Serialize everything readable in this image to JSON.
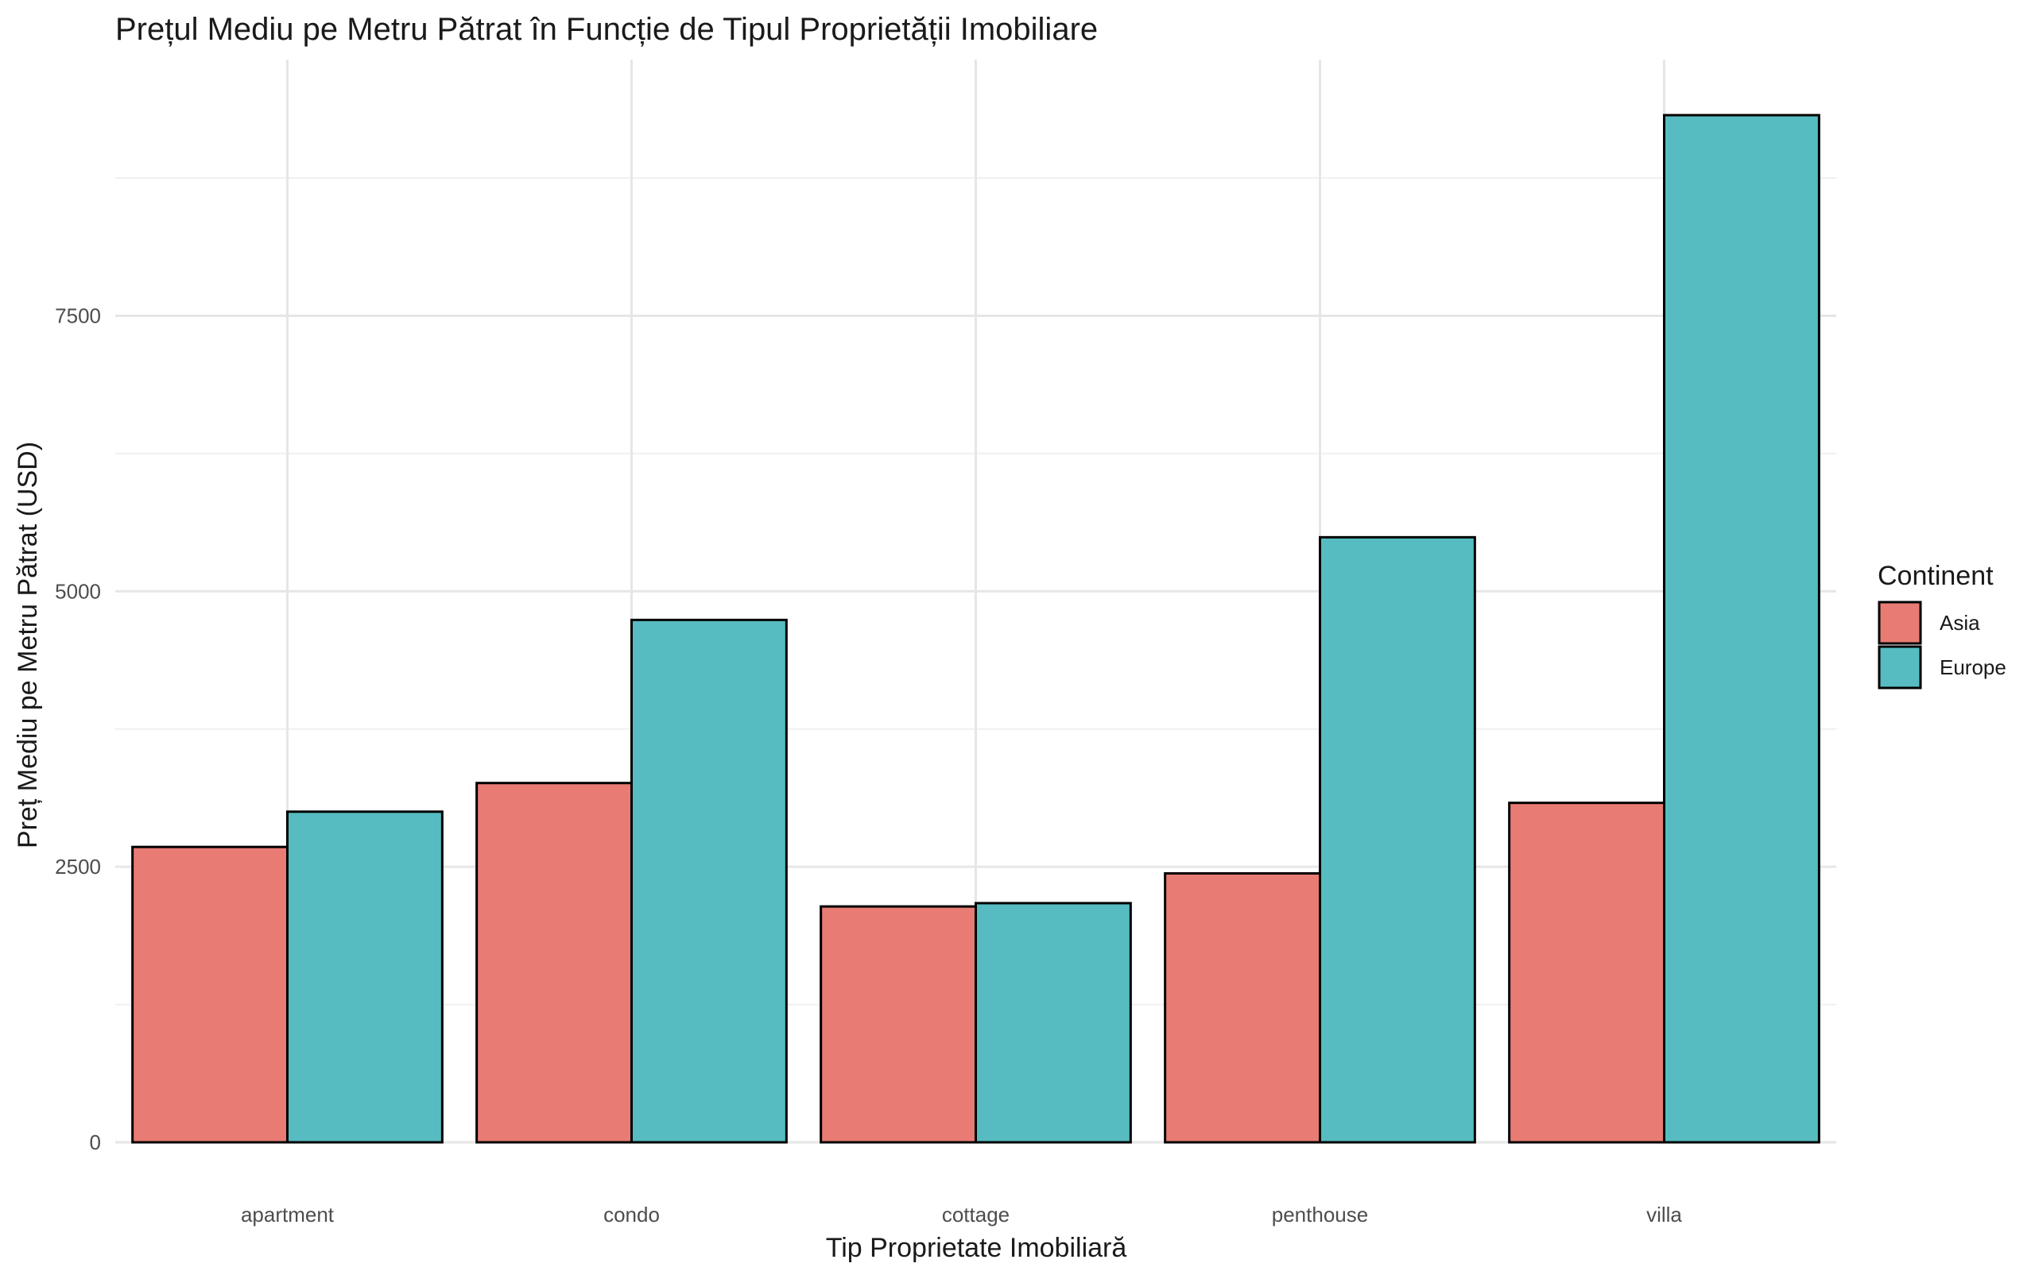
{
  "chart_data": {
    "type": "bar",
    "title": "Prețul Mediu pe Metru Pătrat în Funcție de Tipul Proprietății Imobiliare",
    "xlabel": "Tip Proprietate Imobiliară",
    "ylabel": "Preț Mediu pe Metru Pătrat (USD)",
    "categories": [
      "apartment",
      "condo",
      "cottage",
      "penthouse",
      "villa"
    ],
    "series": [
      {
        "name": "Asia",
        "color": "#E87B73",
        "values": [
          2680,
          3260,
          2140,
          2440,
          3080
        ]
      },
      {
        "name": "Europe",
        "color": "#56BCC1",
        "values": [
          3000,
          4740,
          2170,
          5490,
          9320
        ]
      }
    ],
    "ylim": [
      0,
      9500
    ],
    "yticks": [
      0,
      2500,
      5000,
      7500
    ],
    "ytick_labels": [
      "0",
      "2500",
      "5000",
      "7500"
    ],
    "grid": true,
    "legend": {
      "title": "Continent",
      "position": "right"
    }
  }
}
